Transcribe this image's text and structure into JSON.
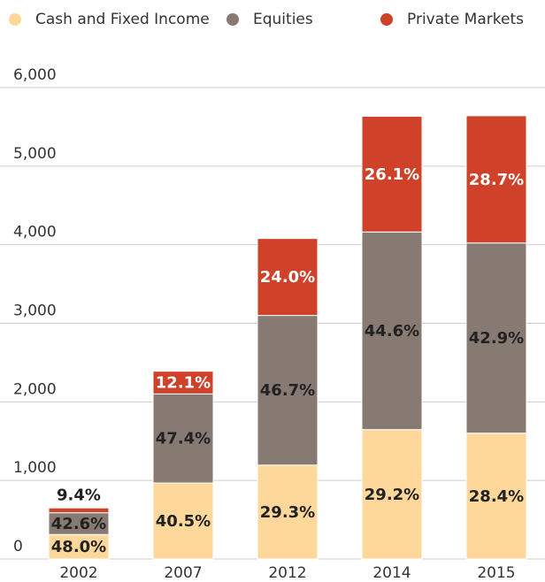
{
  "chart_data": {
    "type": "stacked_bar",
    "categories": [
      "2002",
      "2007",
      "2012",
      "2014",
      "2015"
    ],
    "series": [
      {
        "name": "Cash and Fixed Income",
        "color": "#fdd89a",
        "values": [
          312,
          968,
          1195,
          1647,
          1602
        ],
        "labels": [
          "48.0%",
          "40.5%",
          "29.3%",
          "29.2%",
          "28.4%"
        ]
      },
      {
        "name": "Equities",
        "color": "#877a73",
        "values": [
          277,
          1133,
          1905,
          2515,
          2420
        ],
        "labels": [
          "42.6%",
          "47.4%",
          "46.7%",
          "44.6%",
          "42.9%"
        ]
      },
      {
        "name": "Private Markets",
        "color": "#cf4128",
        "values": [
          61,
          289,
          979,
          1472,
          1619
        ],
        "labels": [
          "9.4%",
          "12.1%",
          "24.0%",
          "26.1%",
          "28.7%"
        ]
      }
    ],
    "ylim": [
      0,
      6000
    ],
    "yticks": [
      0,
      {
        "value": 1000,
        "label": "1,000"
      },
      {
        "value": 2000,
        "label": "2,000"
      },
      {
        "value": 3000,
        "label": "3,000"
      },
      {
        "value": 4000,
        "label": "4,000"
      },
      {
        "value": 5000,
        "label": "5,000"
      },
      {
        "value": 6000,
        "label": "6,000"
      }
    ],
    "grid": true
  }
}
